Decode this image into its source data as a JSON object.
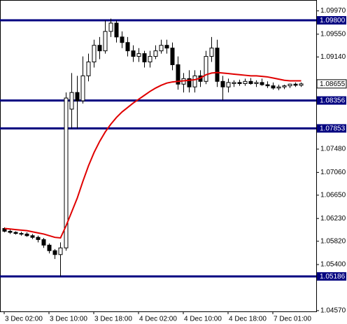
{
  "chart_data": {
    "type": "candlestick",
    "categories": [
      "3 Dec 02:00",
      null,
      null,
      null,
      null,
      null,
      null,
      null,
      "3 Dec 10:00",
      null,
      null,
      null,
      null,
      null,
      null,
      null,
      "3 Dec 18:00",
      null,
      null,
      null,
      null,
      null,
      null,
      null,
      "4 Dec 02:00",
      null,
      null,
      null,
      null,
      null,
      null,
      null,
      "4 Dec 10:00",
      null,
      null,
      null,
      null,
      null,
      null,
      null,
      "4 Dec 18:00",
      null,
      null,
      null,
      null,
      null,
      null,
      null,
      "7 Dec 01:00",
      null,
      null,
      null,
      null,
      null
    ],
    "open": [
      1.0605,
      1.06,
      1.0598,
      1.0596,
      1.0595,
      1.0592,
      1.0589,
      1.0585,
      1.0575,
      1.0565,
      1.0558,
      1.057,
      1.082,
      1.085,
      1.0835,
      1.088,
      1.0905,
      1.0935,
      1.0925,
      1.096,
      1.0975,
      1.095,
      1.094,
      1.0925,
      1.0915,
      1.092,
      1.0905,
      1.0915,
      1.0925,
      1.0935,
      1.093,
      1.09,
      1.0865,
      1.0875,
      1.086,
      1.088,
      1.087,
      1.0915,
      1.093,
      1.087,
      1.086,
      1.0866,
      1.0868,
      1.0866,
      1.087,
      1.0866,
      1.0868,
      1.0864,
      1.0862,
      1.0858,
      1.086,
      1.0862,
      1.0865,
      1.0863
    ],
    "high": [
      1.0607,
      1.0603,
      1.06,
      1.0599,
      1.0598,
      1.0595,
      1.0592,
      1.0588,
      1.0578,
      1.0568,
      1.058,
      1.085,
      1.0885,
      1.088,
      1.0915,
      1.092,
      1.0945,
      1.095,
      1.098,
      1.0983,
      1.098,
      1.096,
      1.095,
      1.0935,
      1.093,
      1.0925,
      1.0925,
      1.0935,
      1.0945,
      1.0945,
      1.094,
      1.0915,
      1.0885,
      1.089,
      1.089,
      1.089,
      1.0925,
      1.095,
      1.0945,
      1.088,
      1.0875,
      1.0872,
      1.0873,
      1.0875,
      1.0876,
      1.0872,
      1.0875,
      1.087,
      1.0868,
      1.0864,
      1.0864,
      1.0866,
      1.0868,
      1.0868
    ],
    "low": [
      1.0598,
      1.0595,
      1.0594,
      1.0592,
      1.059,
      1.0586,
      1.058,
      1.057,
      1.056,
      1.055,
      1.0519,
      1.0565,
      1.0785,
      1.0785,
      1.083,
      1.087,
      1.0895,
      1.091,
      1.092,
      1.095,
      1.094,
      1.093,
      1.0915,
      1.0905,
      1.0905,
      1.0895,
      1.0895,
      1.091,
      1.092,
      1.092,
      1.089,
      1.0855,
      1.085,
      1.085,
      1.085,
      1.086,
      1.0865,
      1.0905,
      1.086,
      1.0836,
      1.085,
      1.086,
      1.0862,
      1.0862,
      1.0864,
      1.086,
      1.0862,
      1.0858,
      1.0855,
      1.0854,
      1.0856,
      1.0858,
      1.086,
      1.086
    ],
    "close": [
      1.06,
      1.0598,
      1.0596,
      1.0595,
      1.0592,
      1.0589,
      1.0585,
      1.0575,
      1.0565,
      1.0558,
      1.057,
      1.084,
      1.085,
      1.0835,
      1.088,
      1.0905,
      1.0935,
      1.0925,
      1.096,
      1.0975,
      1.095,
      1.094,
      1.0925,
      1.0915,
      1.092,
      1.0905,
      1.0915,
      1.0925,
      1.0935,
      1.093,
      1.09,
      1.0865,
      1.0875,
      1.086,
      1.088,
      1.087,
      1.0915,
      1.093,
      1.087,
      1.086,
      1.0868,
      1.0868,
      1.0866,
      1.087,
      1.0866,
      1.0868,
      1.0864,
      1.0862,
      1.0858,
      1.086,
      1.0862,
      1.0865,
      1.0863,
      1.08655
    ],
    "ma": {
      "color": "#e00000",
      "values": [
        1.0605,
        1.0604,
        1.0603,
        1.0602,
        1.0601,
        1.0599,
        1.0597,
        1.0595,
        1.0592,
        1.0589,
        1.0588,
        1.061,
        1.0635,
        1.066,
        1.069,
        1.0718,
        1.0742,
        1.0762,
        1.0779,
        1.0793,
        1.0805,
        1.0815,
        1.0823,
        1.0831,
        1.0838,
        1.0845,
        1.0852,
        1.0858,
        1.0863,
        1.0867,
        1.0869,
        1.087,
        1.0871,
        1.0872,
        1.0873,
        1.0876,
        1.0882,
        1.0885,
        1.0886,
        1.0885,
        1.0884,
        1.0883,
        1.0882,
        1.0881,
        1.088,
        1.088,
        1.0879,
        1.0878,
        1.0876,
        1.0874,
        1.0872,
        1.0871,
        1.0871,
        1.0871
      ]
    },
    "levels": [
      {
        "value": 1.098,
        "label": "1.09800"
      },
      {
        "value": 1.08356,
        "label": "1.08356"
      },
      {
        "value": 1.07853,
        "label": "1.07853"
      },
      {
        "value": 1.05186,
        "label": "1.05186"
      }
    ],
    "level_color": "#000080",
    "last_price": {
      "value": 1.08655,
      "label": "1.08655"
    },
    "ylim": [
      1.04556,
      1.10166
    ],
    "yticks": [
      {
        "value": 1.0997,
        "label": "1.09970"
      },
      {
        "value": 1.0955,
        "label": "1.09550"
      },
      {
        "value": 1.0914,
        "label": "1.09140"
      },
      {
        "value": 1.0748,
        "label": "1.07480"
      },
      {
        "value": 1.0706,
        "label": "1.07060"
      },
      {
        "value": 1.0665,
        "label": "1.06650"
      },
      {
        "value": 1.0623,
        "label": "1.06230"
      },
      {
        "value": 1.0582,
        "label": "1.05820"
      },
      {
        "value": 1.054,
        "label": "1.05400"
      },
      {
        "value": 1.0457,
        "label": "1.04570"
      }
    ]
  }
}
